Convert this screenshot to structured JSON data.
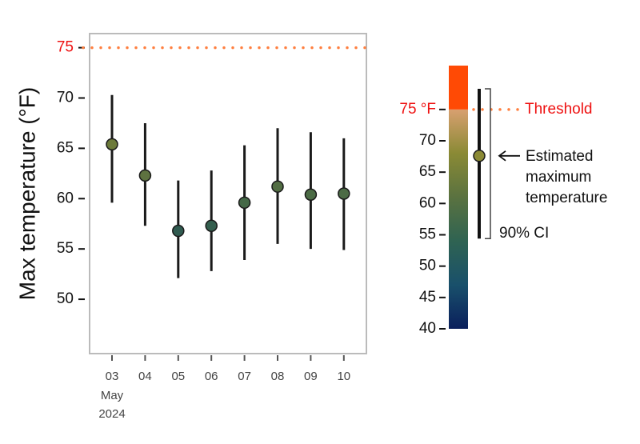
{
  "chart_data": {
    "type": "pointrange",
    "y_label": "Max temperature (°F)",
    "categories": [
      "03",
      "04",
      "05",
      "06",
      "07",
      "08",
      "09",
      "10"
    ],
    "date_label": {
      "month": "May",
      "year": "2024"
    },
    "series": [
      {
        "name": "Estimated maximum temperature",
        "values": [
          65.4,
          62.3,
          56.8,
          57.3,
          59.6,
          61.2,
          60.4,
          60.5
        ],
        "lower": [
          59.6,
          57.3,
          52.1,
          52.8,
          53.9,
          55.5,
          55.0,
          54.9
        ],
        "upper": [
          70.3,
          67.5,
          61.8,
          62.8,
          65.3,
          67.0,
          66.6,
          66.0
        ],
        "colors": [
          "#6c7a3a",
          "#5e7240",
          "#305b50",
          "#345e4e",
          "#456947",
          "#526d43",
          "#4b6b45",
          "#4c6b45"
        ]
      }
    ],
    "ylim": [
      44.6,
      76.4
    ],
    "yticks": [
      50,
      55,
      60,
      65,
      70,
      75
    ],
    "threshold": {
      "value": 75,
      "label": "Threshold",
      "color": "#ff7f3f",
      "label_color": "#ee1111"
    },
    "colorbar": {
      "ylim": [
        40,
        82
      ],
      "yticks": [
        40,
        45,
        50,
        55,
        60,
        65,
        70,
        {
          "value": 75,
          "label": "75 °F"
        }
      ],
      "gradient": [
        "#0a1f5c",
        "#19506b",
        "#2f6352",
        "#5a7240",
        "#8a8a35",
        "#d8a070"
      ],
      "above_color": "#ff4a05",
      "legend_example": {
        "value": 67.6,
        "lower": 54.4,
        "upper": 78.3,
        "color": "#8b8a35"
      },
      "annotations": {
        "estimate": [
          "Estimated",
          "maximum",
          "temperature"
        ],
        "interval": "90% CI"
      }
    }
  }
}
